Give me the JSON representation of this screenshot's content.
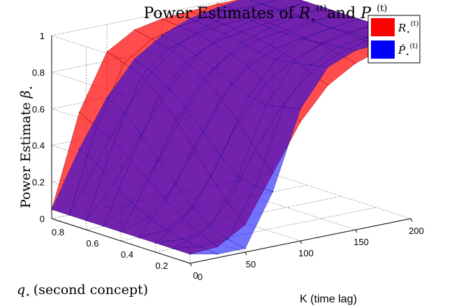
{
  "chart_data": {
    "type": "surface3d",
    "title": {
      "prefix": "Power Estimates of ",
      "sym1": "R",
      "joiner": "and ",
      "sym2": "P",
      "sub": "⋆",
      "sup": "(t)"
    },
    "zlabel": "Power Estimate",
    "zlabel_symbol": "β",
    "xlabel": "K (time lag)",
    "ylabel_text": "(second concept)",
    "ylabel_symbol": "q",
    "x_ticks": [
      "0",
      "50",
      "100",
      "150",
      "200"
    ],
    "y_ticks": [
      "0",
      "0.2",
      "0.4",
      "0.6",
      "0.8"
    ],
    "z_ticks": [
      "0",
      "0.2",
      "0.4",
      "0.6",
      "0.8",
      "1"
    ],
    "x_range": [
      0,
      200
    ],
    "y_range": [
      0,
      0.8
    ],
    "z_range": [
      0,
      1
    ],
    "grid": true,
    "legend_position": "top-right",
    "series": [
      {
        "name": "R⋆(t)",
        "legend_symbol": "R",
        "color": "#ff0000",
        "q": [
          0.8,
          0.7,
          0.6,
          0.5,
          0.4,
          0.3,
          0.2,
          0.1,
          0.0
        ],
        "K": [
          0,
          25,
          50,
          75,
          100,
          125,
          150,
          175,
          200
        ],
        "z": [
          [
            0.05,
            0.55,
            0.85,
            0.94,
            0.97,
            0.98,
            0.99,
            0.99,
            1.0
          ],
          [
            0.05,
            0.5,
            0.82,
            0.92,
            0.96,
            0.98,
            0.99,
            0.99,
            1.0
          ],
          [
            0.05,
            0.45,
            0.78,
            0.9,
            0.95,
            0.97,
            0.98,
            0.99,
            1.0
          ],
          [
            0.05,
            0.38,
            0.7,
            0.86,
            0.93,
            0.96,
            0.98,
            0.99,
            1.0
          ],
          [
            0.05,
            0.3,
            0.6,
            0.8,
            0.9,
            0.95,
            0.97,
            0.99,
            1.0
          ],
          [
            0.05,
            0.22,
            0.48,
            0.72,
            0.86,
            0.93,
            0.96,
            0.98,
            1.0
          ],
          [
            0.05,
            0.15,
            0.35,
            0.62,
            0.8,
            0.9,
            0.95,
            0.98,
            1.0
          ],
          [
            0.05,
            0.1,
            0.24,
            0.5,
            0.72,
            0.86,
            0.93,
            0.97,
            1.0
          ],
          [
            0.05,
            0.06,
            0.15,
            0.4,
            0.65,
            0.82,
            0.91,
            0.96,
            1.0
          ]
        ]
      },
      {
        "name": "P̂⋆(t)",
        "legend_symbol": "P̂",
        "color": "#0000ff",
        "q": [
          0.8,
          0.7,
          0.6,
          0.5,
          0.4,
          0.3,
          0.2,
          0.1,
          0.0
        ],
        "K": [
          0,
          25,
          50,
          75,
          100,
          125,
          150,
          175,
          200
        ],
        "z": [
          [
            0.05,
            0.35,
            0.6,
            0.78,
            0.88,
            0.94,
            0.97,
            0.99,
            1.0
          ],
          [
            0.05,
            0.3,
            0.55,
            0.74,
            0.86,
            0.93,
            0.97,
            0.99,
            1.0
          ],
          [
            0.05,
            0.22,
            0.46,
            0.68,
            0.83,
            0.92,
            0.96,
            0.98,
            1.0
          ],
          [
            0.05,
            0.15,
            0.35,
            0.6,
            0.79,
            0.9,
            0.95,
            0.98,
            1.0
          ],
          [
            0.05,
            0.1,
            0.25,
            0.5,
            0.74,
            0.88,
            0.95,
            0.98,
            1.0
          ],
          [
            0.05,
            0.06,
            0.15,
            0.4,
            0.7,
            0.87,
            0.95,
            0.98,
            1.0
          ],
          [
            0.05,
            0.04,
            0.08,
            0.32,
            0.68,
            0.88,
            0.96,
            0.99,
            1.0
          ],
          [
            0.05,
            0.03,
            0.04,
            0.3,
            0.7,
            0.9,
            0.97,
            0.99,
            1.0
          ],
          [
            0.05,
            0.02,
            0.02,
            0.3,
            0.72,
            0.92,
            0.98,
            0.99,
            1.0
          ]
        ]
      }
    ]
  }
}
